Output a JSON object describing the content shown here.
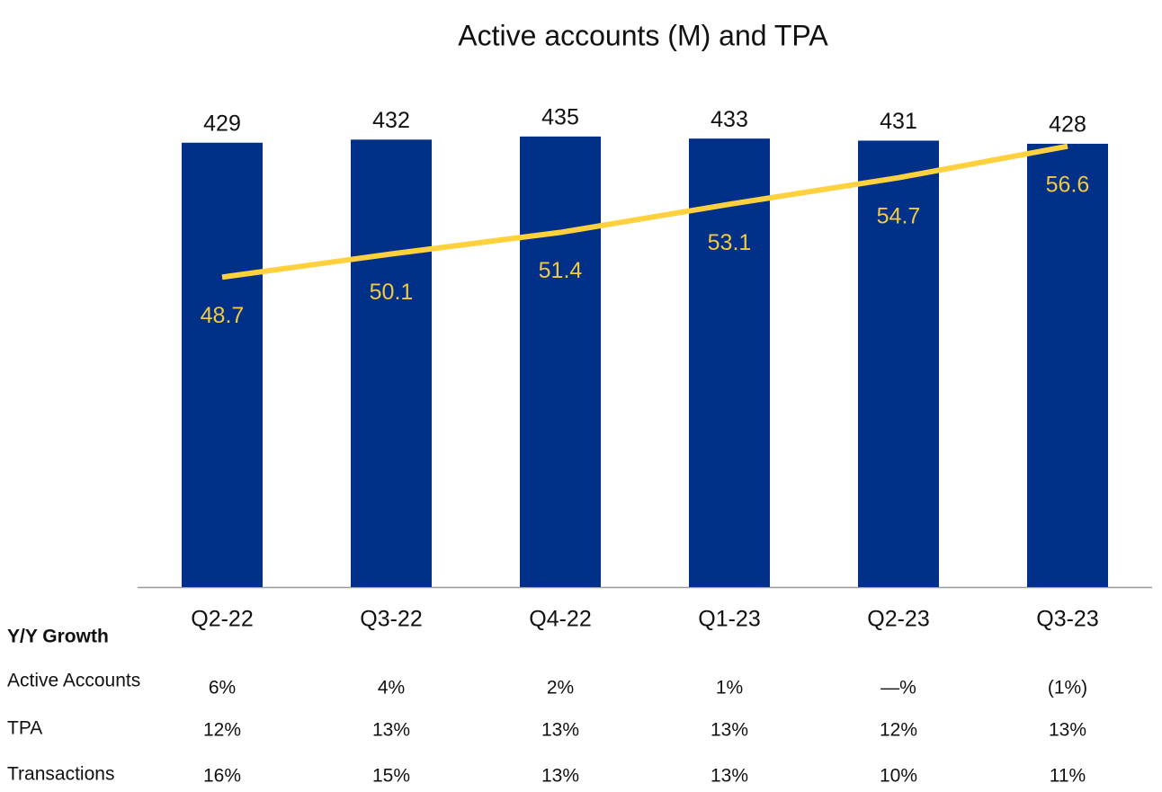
{
  "chart_data": {
    "type": "bar_line",
    "title": "Active accounts (M) and TPA",
    "categories": [
      "Q2-22",
      "Q3-22",
      "Q4-22",
      "Q1-23",
      "Q2-23",
      "Q3-23"
    ],
    "series": [
      {
        "type": "bar",
        "color": "#003087",
        "values": [
          429,
          432,
          435,
          433,
          431,
          428
        ]
      },
      {
        "type": "line",
        "color": "#ffd13f",
        "axis": "y2",
        "values": [
          48.7,
          50.1,
          51.4,
          53.1,
          54.7,
          56.6
        ]
      }
    ],
    "ylim": [
      0,
      480
    ],
    "y2lim": [
      30,
      60
    ]
  },
  "table": {
    "title": "Y/Y Growth",
    "rows": [
      {
        "label": "Active Accounts",
        "values": [
          "6%",
          "4%",
          "2%",
          "1%",
          "—%",
          "(1%)"
        ]
      },
      {
        "label": "TPA",
        "values": [
          "12%",
          "13%",
          "13%",
          "13%",
          "12%",
          "13%"
        ]
      },
      {
        "label": "Transactions",
        "values": [
          "16%",
          "15%",
          "13%",
          "13%",
          "10%",
          "11%"
        ]
      }
    ]
  }
}
